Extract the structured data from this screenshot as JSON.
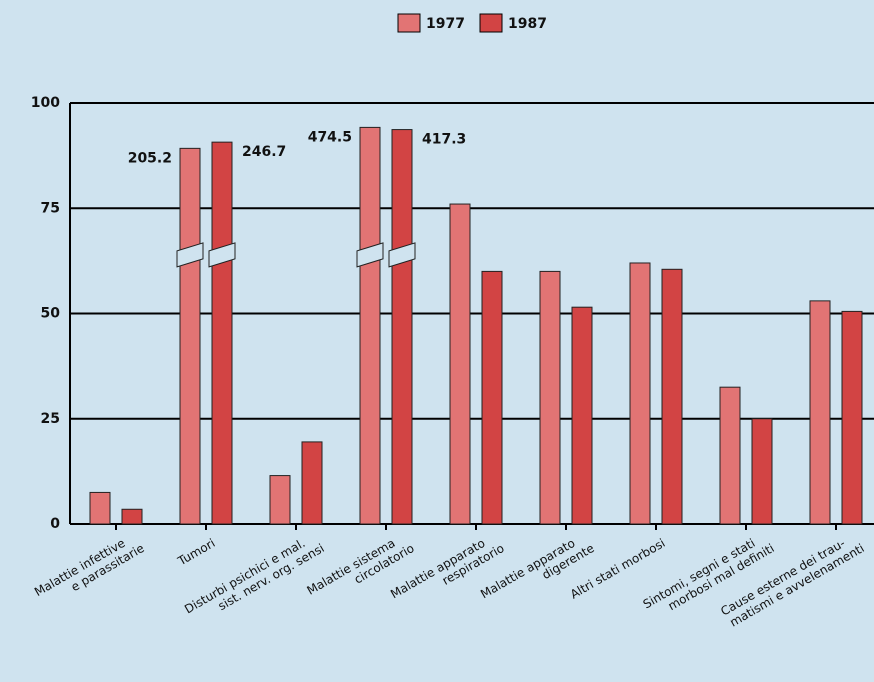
{
  "chart_data": {
    "type": "bar",
    "categories": [
      "Malattie infettive\ne parassitarie",
      "Tumori",
      "Disturbi psichici e mal.\nsist. nerv. org. sensi",
      "Malattie sistema\ncircolatorio",
      "Malattie apparato\nrespiratorio",
      "Malattie apparato\ndigerente",
      "Altri stati morbosi",
      "Sintomi, segni e stati\nmorbosi mal definiti",
      "Cause esterne dei trau-\nmatismi e avvelenamenti"
    ],
    "series": [
      {
        "name": "1977",
        "color": "#e27474",
        "values": [
          7.5,
          205.2,
          11.5,
          474.5,
          76,
          60,
          62,
          32.5,
          53
        ],
        "value_labels": [
          null,
          "205.2",
          null,
          "474.5",
          null,
          null,
          null,
          null,
          null
        ]
      },
      {
        "name": "1987",
        "color": "#d24444",
        "values": [
          3.5,
          246.7,
          19.5,
          417.3,
          60,
          51.5,
          60.5,
          25,
          50.5
        ],
        "value_labels": [
          null,
          "246.7",
          null,
          "417.3",
          null,
          null,
          null,
          null,
          null
        ]
      }
    ],
    "ylim": [
      0,
      100
    ],
    "yticks": [
      0,
      25,
      50,
      75,
      100
    ],
    "grid": true,
    "legend": "top"
  }
}
